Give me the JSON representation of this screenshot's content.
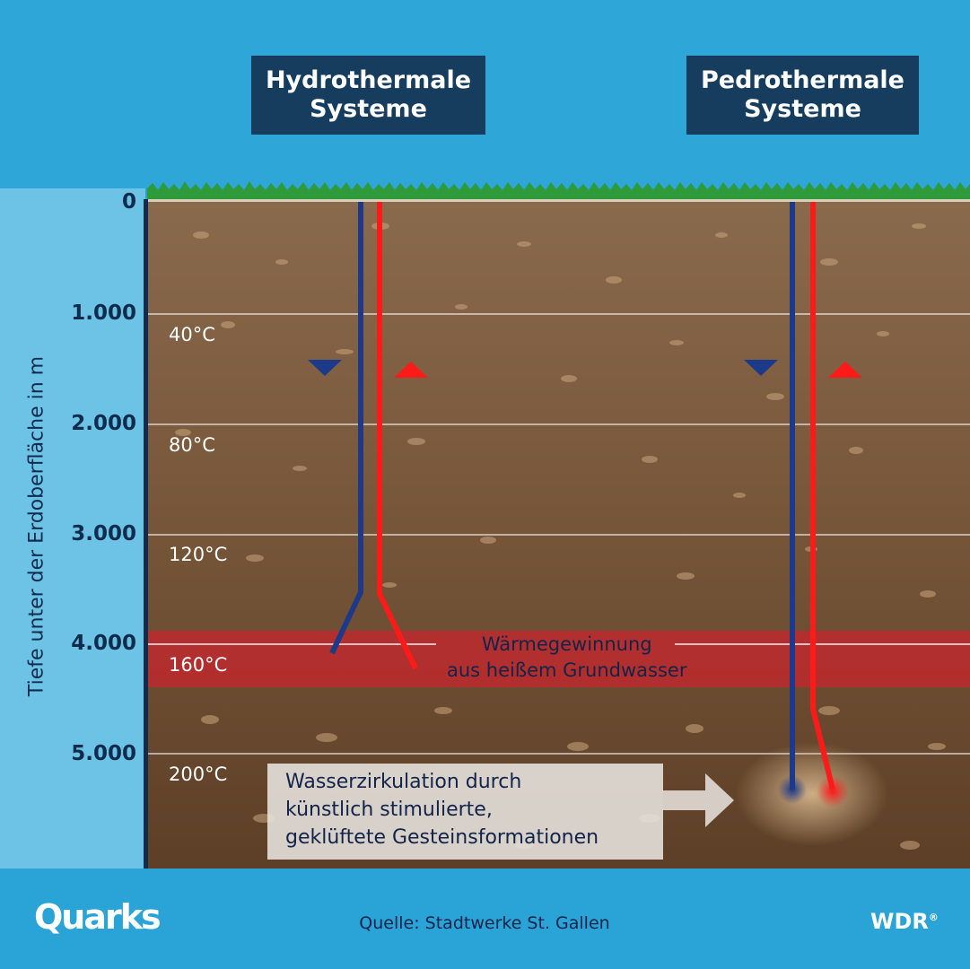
{
  "titles": {
    "hydrothermal": "Hydrothermale\nSysteme",
    "pedrothermal": "Pedrothermale\nSysteme"
  },
  "axis": {
    "title": "Tiefe unter der Erdoberfläche in m",
    "ticks": [
      "0",
      "1.000",
      "2.000",
      "3.000",
      "4.000",
      "5.000"
    ]
  },
  "temperatures": [
    "40°C",
    "80°C",
    "120°C",
    "160°C",
    "200°C"
  ],
  "annotations": {
    "hot_zone": "Wärmegewinnung\naus heißem Grundwasser",
    "circulation": "Wasserzirkulation durch\nkünstlich stimulierte,\ngeklüftete Gesteinsformationen"
  },
  "footer": {
    "logo": "Quarks",
    "source": "Quelle: Stadtwerke St. Gallen",
    "broadcaster": "WDR"
  },
  "colors": {
    "injection_pipe": "#1d3a8a",
    "production_pipe": "#ff1a1a",
    "hot_zone": "#c4272d",
    "title_box": "#163d5e",
    "sky": "#2ea6d7",
    "grass": "#2e9a3a"
  }
}
